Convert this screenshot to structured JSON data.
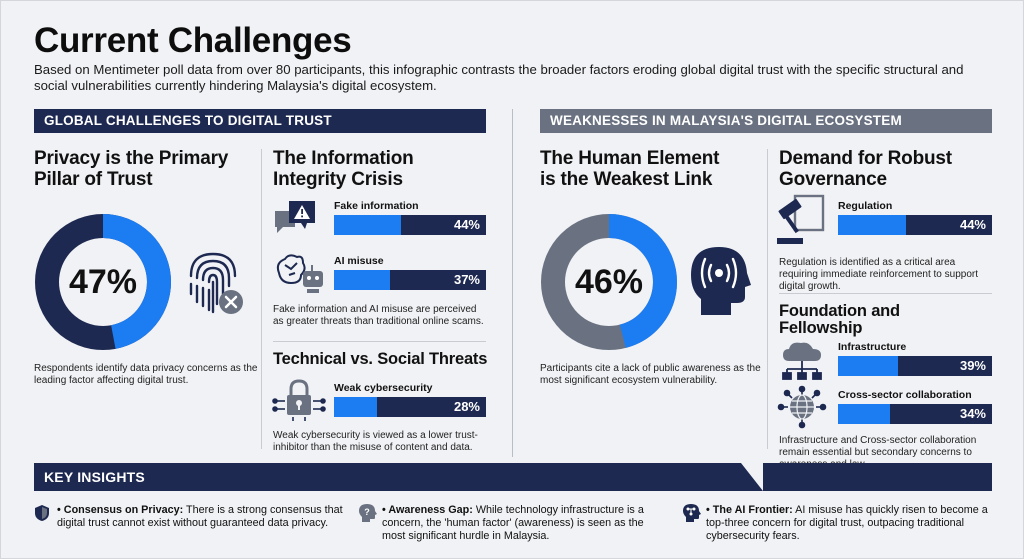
{
  "header": {
    "title": "Current Challenges",
    "subtitle": "Based on Mentimeter poll data from over 80 participants, this infographic contrasts the broader factors eroding global digital trust with the specific structural and social vulnerabilities currently hindering Malaysia's digital ecosystem."
  },
  "left": {
    "banner": "GLOBAL CHALLENGES TO DIGITAL TRUST",
    "privacy": {
      "heading_line1": "Privacy is the Primary",
      "heading_line2": "Pillar of Trust",
      "value": 47,
      "value_label": "47%",
      "note": "Respondents identify data privacy concerns as the leading factor affecting digital trust.",
      "icon": "fingerprint-icon"
    },
    "integrity": {
      "heading_line1": "The Information",
      "heading_line2": "Integrity Crisis",
      "items": [
        {
          "label": "Fake information",
          "value": 44,
          "value_label": "44%",
          "icon": "warning-chat-icon"
        },
        {
          "label": "AI misuse",
          "value": 37,
          "value_label": "37%",
          "icon": "brain-robot-icon"
        }
      ],
      "note": "Fake information and AI misuse are perceived as greater threats than traditional online scams."
    },
    "technical": {
      "heading": "Technical vs. Social Threats",
      "items": [
        {
          "label": "Weak cybersecurity",
          "value": 28,
          "value_label": "28%",
          "icon": "padlock-circuit-icon"
        }
      ],
      "note": "Weak cybersecurity is viewed as a lower trust-inhibitor than the misuse of content and data."
    }
  },
  "right": {
    "banner": "WEAKNESSES IN MALAYSIA'S DIGITAL ECOSYSTEM",
    "human": {
      "heading_line1": "The Human Element",
      "heading_line2": "is the Weakest Link",
      "value": 46,
      "value_label": "46%",
      "note": "Participants cite a lack of public awareness as the most significant ecosystem vulnerability.",
      "icon": "head-signal-icon"
    },
    "governance": {
      "heading_line1": "Demand for Robust",
      "heading_line2": "Governance",
      "items": [
        {
          "label": "Regulation",
          "value": 44,
          "value_label": "44%",
          "icon": "gavel-document-icon"
        }
      ],
      "note": "Regulation is identified as a critical area requiring immediate reinforcement to support digital growth."
    },
    "foundation": {
      "heading_line1": "Foundation and",
      "heading_line2": "Fellowship",
      "items": [
        {
          "label": "Infrastructure",
          "value": 39,
          "value_label": "39%",
          "icon": "cloud-network-icon"
        },
        {
          "label": "Cross-sector collaboration",
          "value": 34,
          "value_label": "34%",
          "icon": "globe-network-icon"
        }
      ],
      "note": "Infrastructure and Cross-sector collaboration remain essential but secondary concerns to awareness and law."
    }
  },
  "insights": {
    "banner": "KEY INSIGHTS",
    "items": [
      {
        "title": "Consensus on Privacy:",
        "text": "There is a strong consensus that digital trust cannot exist without guaranteed data privacy.",
        "icon": "shield-icon"
      },
      {
        "title": "Awareness Gap:",
        "text": "While technology infrastructure is a concern, the 'human factor' (awareness) is seen as the most significant hurdle in Malaysia.",
        "icon": "head-question-icon"
      },
      {
        "title": "The AI Frontier:",
        "text": "AI misuse has quickly risen to become a top-three concern for digital trust, outpacing traditional cybersecurity fears.",
        "icon": "ai-head-icon"
      }
    ]
  },
  "colors": {
    "navy": "#1d2950",
    "blue": "#1c7cf2",
    "gray_banner": "#6a7282",
    "background": "#f1f2f5"
  }
}
